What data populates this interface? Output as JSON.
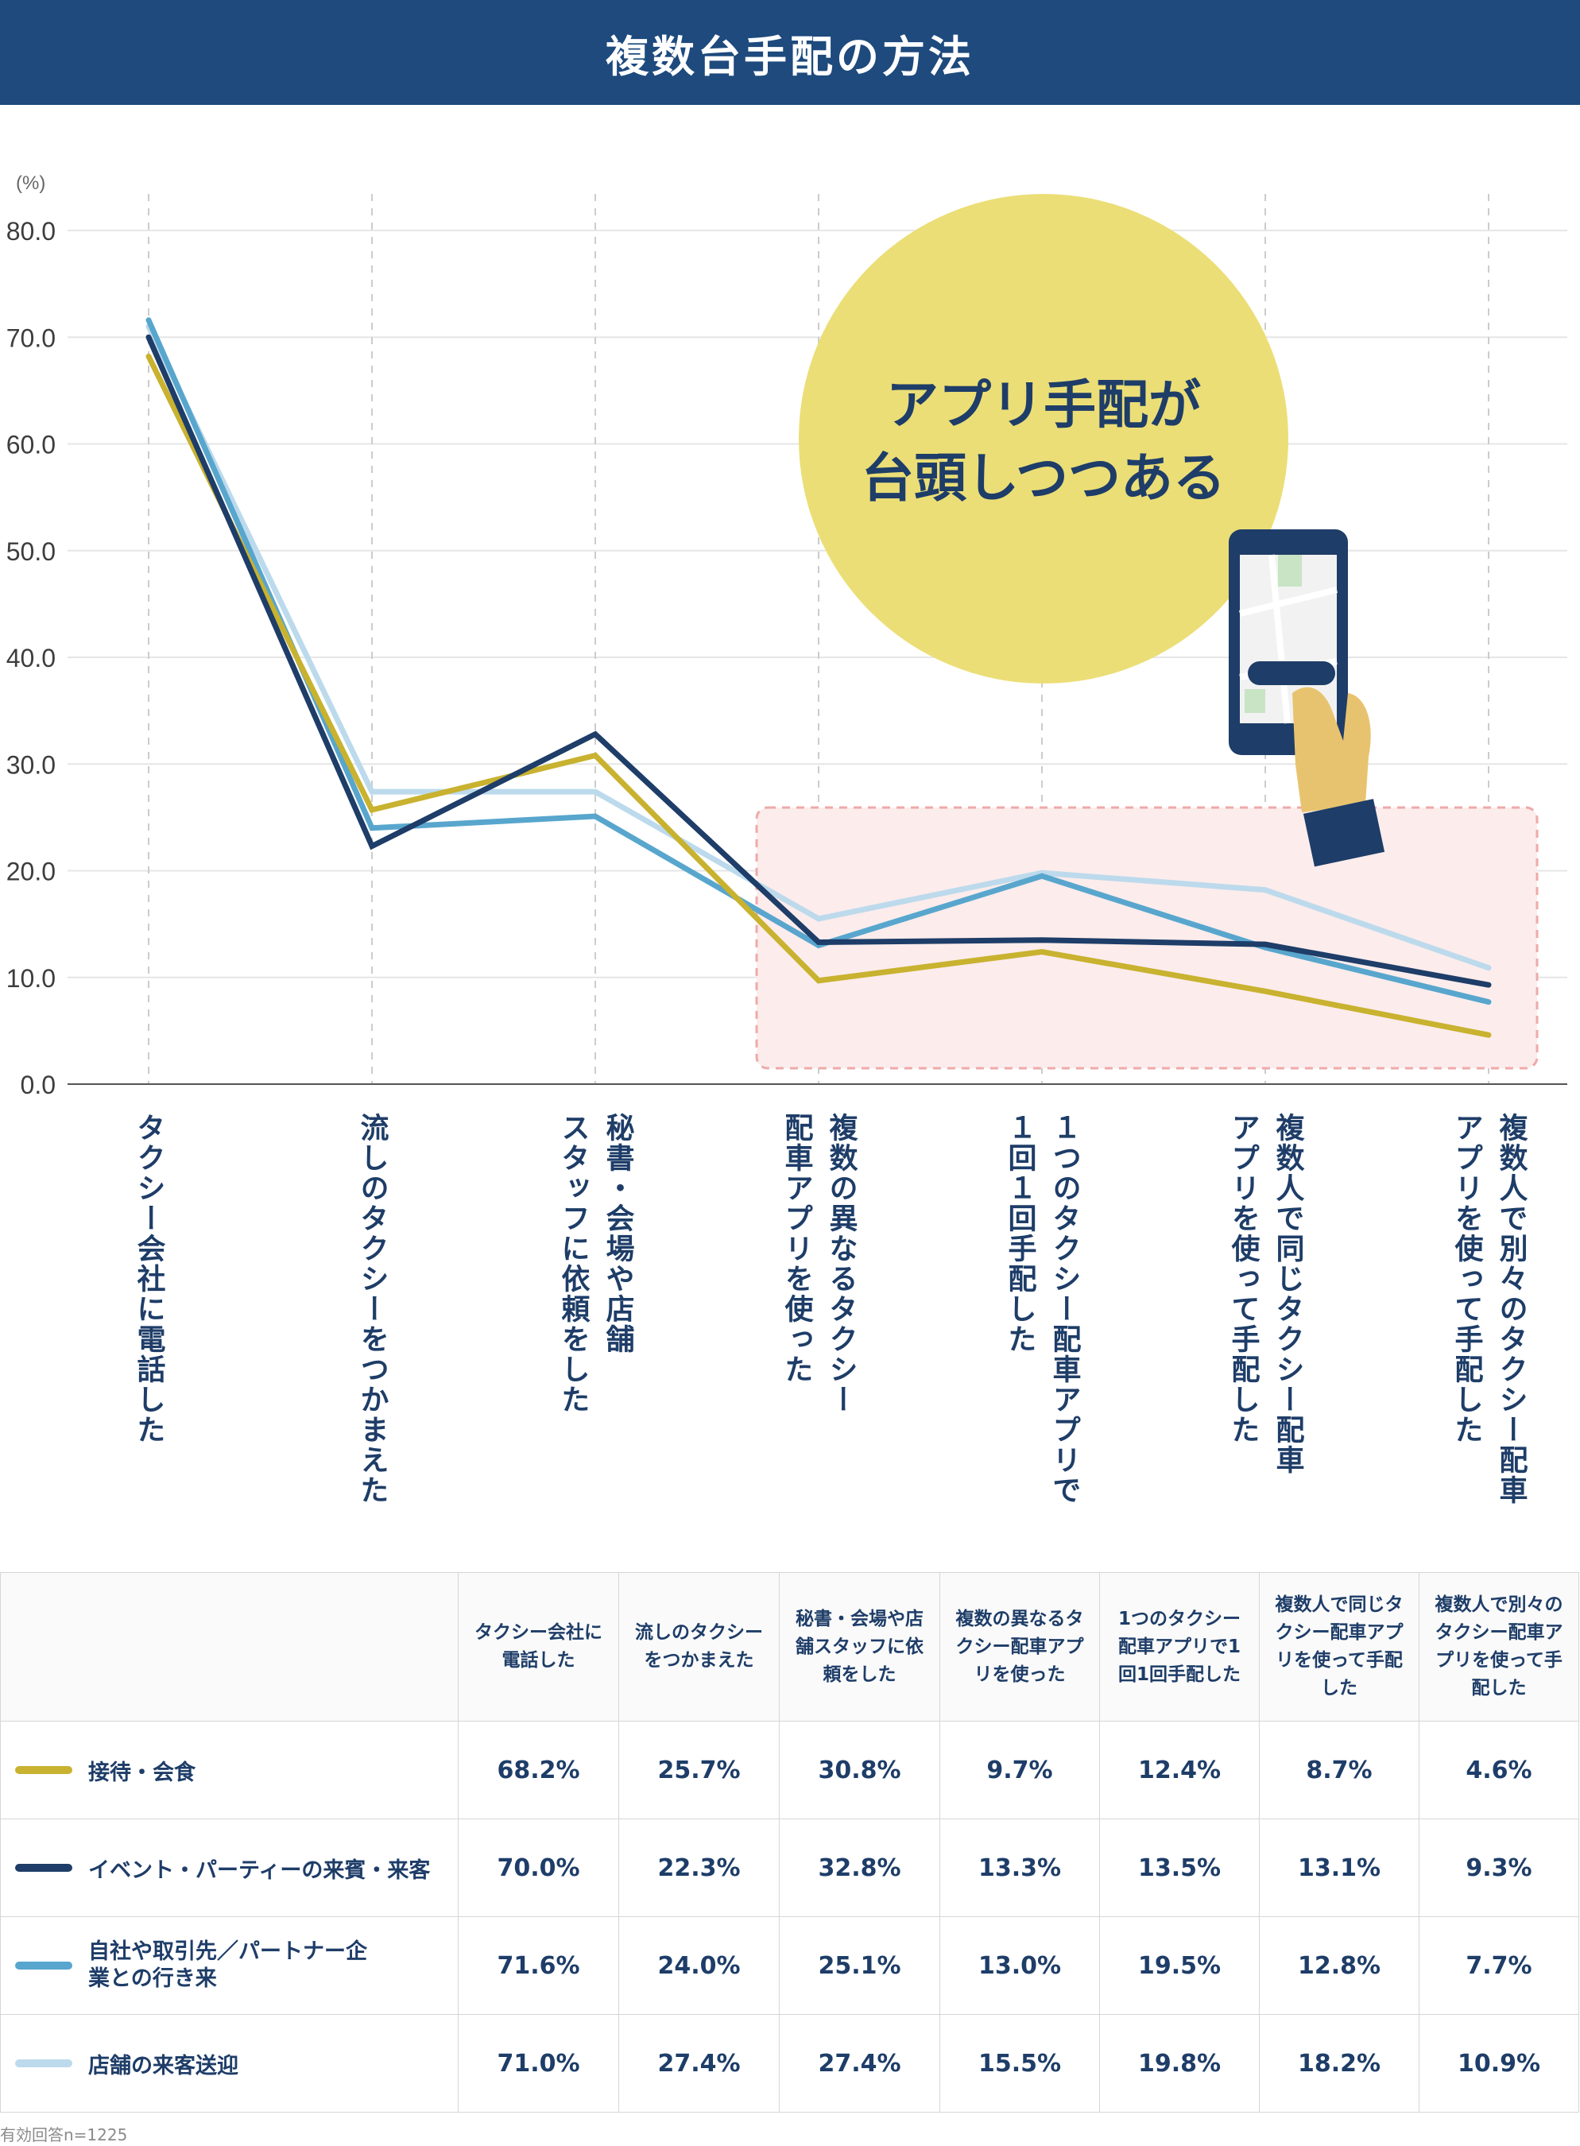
{
  "page": {
    "title": "複数台手配の方法",
    "footnote": "有効回答n=1225"
  },
  "callout": {
    "line1": "アプリ手配が",
    "line2": "台頭しつつある"
  },
  "colors": {
    "header": "#1e4a7d",
    "callout": "#ebde76",
    "highlight_fill": "#fcecec",
    "highlight_stroke": "#eeaaaa",
    "series": [
      "#c8b22f",
      "#1e3d68",
      "#58a6cd",
      "#bcdaec"
    ]
  },
  "chart_data": {
    "type": "line",
    "ylabel": "(%)",
    "ylim": [
      0,
      80
    ],
    "yticks": [
      "0.0",
      "10.0",
      "20.0",
      "30.0",
      "40.0",
      "50.0",
      "60.0",
      "70.0",
      "80.0"
    ],
    "grid": true,
    "categories": [
      "タクシー会社に電話した",
      "流しのタクシーをつかまえた",
      "秘書・会場や店舗スタッフに依頼をした",
      "複数の異なるタクシー配車アプリを使った",
      "1つのタクシー配車アプリで1回1回手配した",
      "複数人で同じタクシー配車アプリを使って手配した",
      "複数人で別々のタクシー配車アプリを使って手配した"
    ],
    "x_labels": [
      [
        "タクシー会社に電話した"
      ],
      [
        "流しのタクシーをつかまえた"
      ],
      [
        "秘書・会場や店舗",
        "スタッフに依頼をした"
      ],
      [
        "複数の異なるタクシー",
        "配車アプリを使った"
      ],
      [
        "１つのタクシー配車アプリで",
        "１回１回手配した"
      ],
      [
        "複数人で同じタクシー配車",
        "アプリを使って手配した"
      ],
      [
        "複数人で別々のタクシー配車",
        "アプリを使って手配した"
      ]
    ],
    "series": [
      {
        "name": "接待・会食",
        "values": [
          68.2,
          25.7,
          30.8,
          9.7,
          12.4,
          8.7,
          4.6
        ]
      },
      {
        "name": "イベント・パーティーの来賓・来客",
        "values": [
          70.0,
          22.3,
          32.8,
          13.3,
          13.5,
          13.1,
          9.3
        ]
      },
      {
        "name": "自社や取引先／パートナー企業との行き来",
        "values": [
          71.6,
          24.0,
          25.1,
          13.0,
          19.5,
          12.8,
          7.7
        ]
      },
      {
        "name": "店舗の来客送迎",
        "values": [
          71.0,
          27.4,
          27.4,
          15.5,
          19.8,
          18.2,
          10.9
        ]
      }
    ]
  },
  "table": {
    "headers": [
      "タクシー会社に電話した",
      "流しのタクシーをつかまえた",
      "秘書・会場や店舗スタッフに依頼をした",
      "複数の異なるタクシー配車アプリを使った",
      "1つのタクシー配車アプリで1回1回手配した",
      "複数人で同じタクシー配車アプリを使って手配した",
      "複数人で別々のタクシー配車アプリを使って手配した"
    ],
    "rows": [
      {
        "label": "接待・会食",
        "cells": [
          "68.2%",
          "25.7%",
          "30.8%",
          "9.7%",
          "12.4%",
          "8.7%",
          "4.6%"
        ]
      },
      {
        "label": "イベント・パーティーの来賓・来客",
        "cells": [
          "70.0%",
          "22.3%",
          "32.8%",
          "13.3%",
          "13.5%",
          "13.1%",
          "9.3%"
        ]
      },
      {
        "label": "自社や取引先／パートナー企業との行き来",
        "cells": [
          "71.6%",
          "24.0%",
          "25.1%",
          "13.0%",
          "19.5%",
          "12.8%",
          "7.7%"
        ]
      },
      {
        "label": "店舗の来客送迎",
        "cells": [
          "71.0%",
          "27.4%",
          "27.4%",
          "15.5%",
          "19.8%",
          "18.2%",
          "10.9%"
        ]
      }
    ]
  }
}
